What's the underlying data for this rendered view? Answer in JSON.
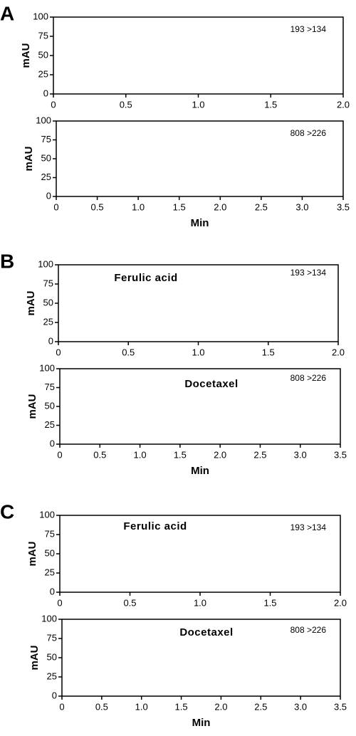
{
  "chart_data": [
    {
      "type": "line",
      "panel_label": "A",
      "ylabel": "mAU",
      "annotations": [
        "193 >134"
      ],
      "xlim": [
        0,
        2
      ],
      "xticks": [
        0,
        0.5,
        {
          "value": 1,
          "label": "1.0"
        },
        1.5,
        {
          "value": 2,
          "label": "2.0"
        }
      ],
      "ylim": [
        0,
        100
      ],
      "yticks": [
        0,
        25,
        50,
        75,
        100
      ]
    },
    {
      "type": "line",
      "ylabel": "mAU",
      "xlabel": "Min",
      "annotations": [
        "808 >226"
      ],
      "xlim": [
        0,
        3.5
      ],
      "xticks": [
        0,
        0.5,
        {
          "value": 1,
          "label": "1.0"
        },
        1.5,
        {
          "value": 2,
          "label": "2.0"
        },
        2.5,
        {
          "value": 3,
          "label": "3.0"
        },
        3.5
      ],
      "ylim": [
        0,
        100
      ],
      "yticks": [
        0,
        25,
        50,
        75,
        100
      ]
    },
    {
      "type": "line",
      "panel_label": "B",
      "ylabel": "mAU",
      "annotations": [
        "Ferulic acid",
        "193 >134"
      ],
      "xlim": [
        0,
        2
      ],
      "xticks": [
        0,
        0.5,
        {
          "value": 1,
          "label": "1.0"
        },
        1.5,
        {
          "value": 2,
          "label": "2.0"
        }
      ],
      "ylim": [
        0,
        100
      ],
      "yticks": [
        0,
        25,
        50,
        75,
        100
      ]
    },
    {
      "type": "line",
      "ylabel": "mAU",
      "xlabel": "Min",
      "annotations": [
        "Docetaxel",
        "808 >226"
      ],
      "xlim": [
        0,
        3.5
      ],
      "xticks": [
        0,
        0.5,
        {
          "value": 1,
          "label": "1.0"
        },
        1.5,
        {
          "value": 2,
          "label": "2.0"
        },
        2.5,
        {
          "value": 3,
          "label": "3.0"
        },
        3.5
      ],
      "ylim": [
        0,
        100
      ],
      "yticks": [
        0,
        25,
        50,
        75,
        100
      ]
    },
    {
      "type": "line",
      "panel_label": "C",
      "ylabel": "mAU",
      "annotations": [
        "Ferulic acid",
        "193 >134"
      ],
      "xlim": [
        0,
        2
      ],
      "xticks": [
        0,
        0.5,
        {
          "value": 1,
          "label": "1.0"
        },
        1.5,
        {
          "value": 2,
          "label": "2.0"
        }
      ],
      "ylim": [
        0,
        100
      ],
      "yticks": [
        0,
        25,
        50,
        75,
        100
      ]
    },
    {
      "type": "line",
      "ylabel": "mAU",
      "xlabel": "Min",
      "annotations": [
        "Docetaxel",
        "808 >226"
      ],
      "xlim": [
        0,
        3.5
      ],
      "xticks": [
        0,
        0.5,
        {
          "value": 1,
          "label": "1.0"
        },
        1.5,
        {
          "value": 2,
          "label": "2.0"
        },
        2.5,
        {
          "value": 3,
          "label": "3.0"
        },
        3.5
      ],
      "ylim": [
        0,
        100
      ],
      "yticks": [
        0,
        25,
        50,
        75,
        100
      ]
    }
  ]
}
